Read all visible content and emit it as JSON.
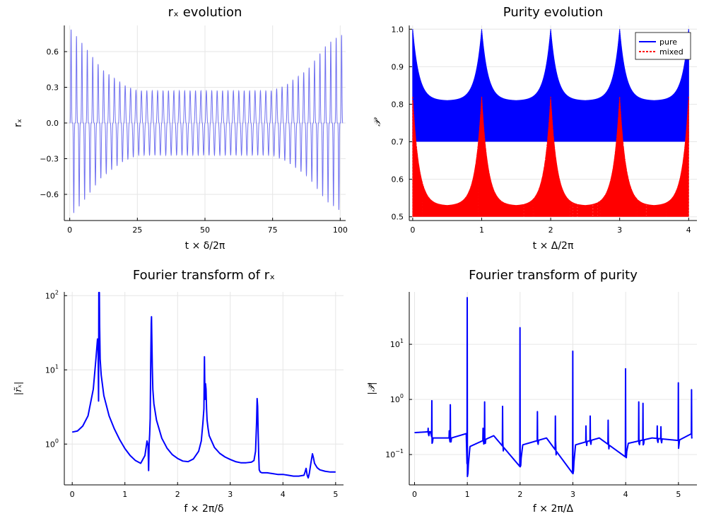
{
  "chart_data": [
    {
      "type": "line",
      "title": "rₓ evolution",
      "xlabel": "t × δ/2π",
      "ylabel": "rₓ",
      "xlim": [
        -2,
        102
      ],
      "ylim": [
        -0.82,
        0.82
      ],
      "xticks": [
        0,
        25,
        50,
        75,
        100
      ],
      "yticks": [
        -0.6,
        -0.3,
        0.0,
        0.3,
        0.6
      ],
      "ytick_labels": [
        "−0.6",
        "−0.3",
        "0.0",
        "0.3",
        "0.6"
      ],
      "grid": true,
      "series": [
        {
          "name": "rₓ",
          "color": "#7070f0",
          "description": "Oscillation with period ~2 in t×δ/2π; sharp spikes up to about 0.8 and down to about −0.78 near t=0 and t=100, envelope narrowing to about ±0.27 in the middle (t≈25–75).",
          "period": 2.0,
          "envelope": {
            "t": [
              0,
              5,
              12,
              20,
              25,
              50,
              75,
              80,
              88,
              95,
              100
            ],
            "amp": [
              0.8,
              0.66,
              0.45,
              0.32,
              0.27,
              0.27,
              0.27,
              0.32,
              0.45,
              0.66,
              0.74
            ]
          }
        }
      ]
    },
    {
      "type": "line",
      "title": "Purity evolution",
      "xlabel": "t × Δ/2π",
      "ylabel": "𝒫",
      "xlim": [
        -0.05,
        4.12
      ],
      "ylim": [
        0.49,
        1.01
      ],
      "xticks": [
        0,
        1,
        2,
        3,
        4
      ],
      "yticks": [
        0.5,
        0.6,
        0.7,
        0.8,
        0.9,
        1.0
      ],
      "ytick_labels": [
        "0.5",
        "0.6",
        "0.7",
        "0.8",
        "0.9",
        "1.0"
      ],
      "grid": true,
      "legend": "top-right",
      "series": [
        {
          "name": "pure",
          "color": "#0000ff",
          "style": "solid",
          "description": "Rapid oscillation filling band; lower edge 0.7 between revivals, upper edge ~0.81 mid-cycle, revivals to 1.0 at integer t",
          "base": 0.7,
          "mid_top": 0.81,
          "peak": 1.0,
          "peak_times": [
            0,
            1,
            2,
            3,
            4
          ]
        },
        {
          "name": "mixed",
          "color": "#ff0000",
          "style": "dashed",
          "description": "Rapid oscillation filling band; lower edge 0.5, upper edge ~0.53 mid-cycle, revivals to ~0.82 at integer t",
          "base": 0.5,
          "mid_top": 0.53,
          "peak": 0.82,
          "peak_times": [
            0,
            1,
            2,
            3,
            4
          ]
        }
      ]
    },
    {
      "type": "line",
      "title": "Fourier transform of rₓ",
      "xlabel": "f × 2π/δ",
      "ylabel": "|r̃ₓ|",
      "yscale": "log",
      "xlim": [
        -0.15,
        5.15
      ],
      "ylim_log10": [
        -0.55,
        2.05
      ],
      "xticks": [
        0,
        1,
        2,
        3,
        4,
        5
      ],
      "yticks_log10": [
        0,
        1,
        2
      ],
      "ytick_labels": [
        "10",
        "10",
        "10"
      ],
      "ytick_exponents": [
        "0",
        "1",
        "2"
      ],
      "grid": true,
      "series": [
        {
          "name": "|r̃ₓ|",
          "color": "#0000ff",
          "x": [
            0,
            0.1,
            0.2,
            0.3,
            0.4,
            0.45,
            0.48,
            0.49,
            0.5,
            0.505,
            0.515,
            0.52,
            0.53,
            0.55,
            0.6,
            0.7,
            0.8,
            0.9,
            1.0,
            1.1,
            1.2,
            1.3,
            1.38,
            1.42,
            1.44,
            1.45,
            1.46,
            1.47,
            1.48,
            1.49,
            1.5,
            1.505,
            1.51,
            1.52,
            1.53,
            1.55,
            1.6,
            1.7,
            1.8,
            1.9,
            2.0,
            2.1,
            2.2,
            2.3,
            2.4,
            2.45,
            2.48,
            2.5,
            2.51,
            2.52,
            2.53,
            2.54,
            2.55,
            2.56,
            2.58,
            2.6,
            2.7,
            2.8,
            2.9,
            3.0,
            3.1,
            3.2,
            3.3,
            3.4,
            3.45,
            3.48,
            3.5,
            3.51,
            3.52,
            3.53,
            3.54,
            3.55,
            3.57,
            3.6,
            3.7,
            3.8,
            3.9,
            4.0,
            4.1,
            4.2,
            4.3,
            4.4,
            4.42,
            4.44,
            4.46,
            4.48,
            4.5,
            4.53,
            4.56,
            4.58,
            4.6,
            4.65,
            4.7,
            4.8,
            4.9,
            5.0
          ],
          "y": [
            1.45,
            1.5,
            1.75,
            2.4,
            5.5,
            14,
            26,
            25,
            3.8,
            110,
            110,
            40,
            14,
            8.5,
            4.5,
            2.4,
            1.6,
            1.15,
            0.87,
            0.7,
            0.6,
            0.55,
            0.7,
            1.1,
            0.95,
            0.44,
            1.0,
            1.35,
            2.2,
            12,
            42,
            52,
            30,
            11,
            5.5,
            3.5,
            2.1,
            1.2,
            0.88,
            0.72,
            0.64,
            0.59,
            0.58,
            0.63,
            0.8,
            1.1,
            1.9,
            3.0,
            15,
            4.0,
            6.5,
            5.5,
            3.0,
            2.1,
            1.6,
            1.3,
            0.9,
            0.75,
            0.67,
            0.62,
            0.58,
            0.56,
            0.56,
            0.57,
            0.6,
            0.8,
            2.0,
            4.1,
            3.2,
            1.4,
            0.7,
            0.45,
            0.42,
            0.41,
            0.41,
            0.4,
            0.39,
            0.39,
            0.38,
            0.37,
            0.37,
            0.38,
            0.42,
            0.47,
            0.38,
            0.35,
            0.4,
            0.55,
            0.74,
            0.65,
            0.55,
            0.48,
            0.45,
            0.43,
            0.42,
            0.42
          ]
        }
      ]
    },
    {
      "type": "line",
      "title": "Fourier transform of purity",
      "xlabel": "f × 2π/Δ",
      "ylabel": "|𝒫̃|",
      "yscale": "log",
      "xlim": [
        -0.1,
        5.35
      ],
      "ylim_log10": [
        -1.55,
        1.95
      ],
      "xticks": [
        0,
        1,
        2,
        3,
        4,
        5
      ],
      "yticks_log10": [
        -1,
        0,
        1
      ],
      "ytick_labels": [
        "10",
        "10",
        "10"
      ],
      "ytick_exponents": [
        "−1",
        "0",
        "1"
      ],
      "grid": true,
      "series": [
        {
          "name": "|𝒫̃|",
          "color": "#0000ff",
          "baseline": [
            [
              0,
              0.25
            ],
            [
              0.3,
              0.26
            ],
            [
              0.33,
              0.2
            ],
            [
              0.7,
              0.2
            ],
            [
              0.98,
              0.24
            ],
            [
              1.0,
              0.04
            ],
            [
              1.05,
              0.14
            ],
            [
              1.5,
              0.22
            ],
            [
              2.0,
              0.06
            ],
            [
              2.05,
              0.15
            ],
            [
              2.5,
              0.2
            ],
            [
              3.0,
              0.045
            ],
            [
              3.05,
              0.15
            ],
            [
              3.5,
              0.2
            ],
            [
              4.0,
              0.09
            ],
            [
              4.05,
              0.16
            ],
            [
              4.5,
              0.2
            ],
            [
              5.0,
              0.18
            ],
            [
              5.25,
              0.24
            ]
          ],
          "spikes": [
            {
              "f": 0.26,
              "peak": 0.3,
              "dip": 0.24
            },
            {
              "f": 0.33,
              "peak": 0.95,
              "dip": 0.16
            },
            {
              "f": 0.66,
              "peak": 0.27,
              "dip": 0.2
            },
            {
              "f": 0.68,
              "peak": 0.8,
              "dip": 0.17
            },
            {
              "f": 1.0,
              "peak": 70,
              "dip": 0.04
            },
            {
              "f": 1.3,
              "peak": 0.3,
              "dip": 0.19
            },
            {
              "f": 1.33,
              "peak": 0.9,
              "dip": 0.16
            },
            {
              "f": 1.67,
              "peak": 0.75,
              "dip": 0.17
            },
            {
              "f": 2.0,
              "peak": 20,
              "dip": 0.06
            },
            {
              "f": 2.33,
              "peak": 0.6,
              "dip": 0.17
            },
            {
              "f": 2.67,
              "peak": 0.5,
              "dip": 0.18
            },
            {
              "f": 3.0,
              "peak": 7.5,
              "dip": 0.045
            },
            {
              "f": 3.25,
              "peak": 0.33,
              "dip": 0.18
            },
            {
              "f": 3.33,
              "peak": 0.5,
              "dip": 0.17
            },
            {
              "f": 3.67,
              "peak": 0.42,
              "dip": 0.18
            },
            {
              "f": 4.0,
              "peak": 3.6,
              "dip": 0.09
            },
            {
              "f": 4.25,
              "peak": 0.9,
              "dip": 0.16
            },
            {
              "f": 4.33,
              "peak": 0.85,
              "dip": 0.15
            },
            {
              "f": 4.6,
              "peak": 0.33,
              "dip": 0.18
            },
            {
              "f": 4.67,
              "peak": 0.32,
              "dip": 0.18
            },
            {
              "f": 5.0,
              "peak": 2.0,
              "dip": 0.13
            },
            {
              "f": 5.25,
              "peak": 1.5,
              "dip": 0.2
            }
          ]
        }
      ]
    }
  ]
}
